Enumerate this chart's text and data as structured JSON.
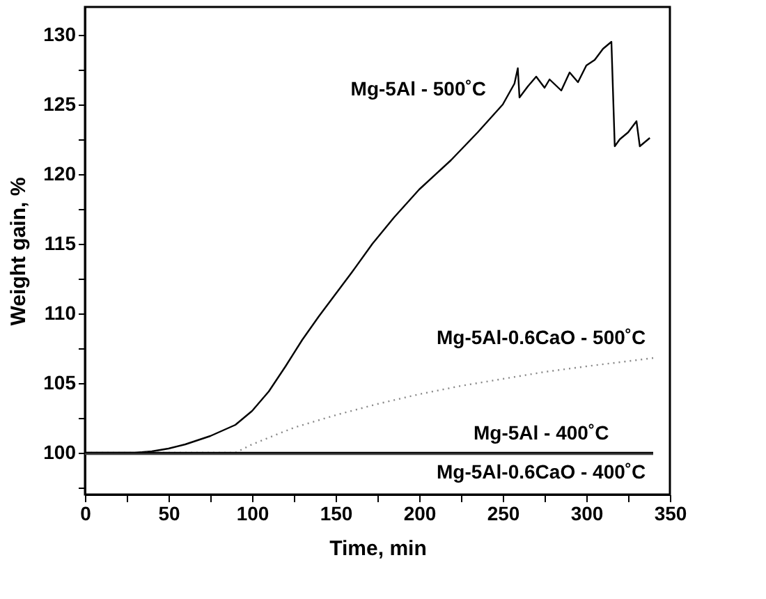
{
  "chart_data": {
    "type": "line",
    "xlabel": "Time, min",
    "ylabel": "Weight gain, %",
    "xlim": [
      0,
      350
    ],
    "ylim": [
      97,
      132
    ],
    "xticks": [
      0,
      {
        "value": 25,
        "label": null
      },
      50,
      {
        "value": 75,
        "label": null
      },
      100,
      {
        "value": 125,
        "label": null
      },
      150,
      {
        "value": 175,
        "label": null
      },
      200,
      {
        "value": 225,
        "label": null
      },
      250,
      {
        "value": 275,
        "label": null
      },
      300,
      {
        "value": 325,
        "label": null
      },
      350
    ],
    "yticks": [
      {
        "value": 97.5,
        "label": null
      },
      100,
      {
        "value": 102.5,
        "label": null
      },
      105,
      {
        "value": 107.5,
        "label": null
      },
      110,
      {
        "value": 112.5,
        "label": null
      },
      115,
      {
        "value": 117.5,
        "label": null
      },
      120,
      {
        "value": 122.5,
        "label": null
      },
      125,
      {
        "value": 127.5,
        "label": null
      },
      130
    ],
    "grid": false,
    "legend": false,
    "marker": "none",
    "series": [
      {
        "name": "Mg-5Al - 500˚C",
        "color": "#000000",
        "line_style": "solid",
        "x": [
          0,
          30,
          40,
          50,
          60,
          75,
          90,
          100,
          110,
          120,
          130,
          140,
          150,
          160,
          172,
          185,
          200,
          219,
          235,
          250,
          257,
          259,
          260,
          265,
          270,
          275,
          278,
          285,
          290,
          295,
          300,
          305,
          310,
          315,
          317,
          320,
          325,
          330,
          332,
          335,
          338
        ],
        "values": [
          100,
          100,
          100.1,
          100.3,
          100.6,
          101.2,
          102,
          103,
          104.4,
          106.2,
          108.1,
          109.8,
          111.4,
          113,
          115,
          116.9,
          118.9,
          121,
          123,
          125,
          126.5,
          127.6,
          125.5,
          126.3,
          127,
          126.2,
          126.8,
          126,
          127.3,
          126.6,
          127.8,
          128.2,
          129,
          129.5,
          122,
          122.5,
          123,
          123.8,
          122,
          122.3,
          122.6
        ]
      },
      {
        "name": "Mg-5Al-0.6CaO - 500˚C",
        "color": "#888888",
        "line_style": "dotted",
        "x": [
          0,
          90,
          100,
          125,
          150,
          175,
          200,
          225,
          250,
          275,
          300,
          320,
          340
        ],
        "values": [
          100,
          100,
          100.6,
          101.8,
          102.7,
          103.5,
          104.2,
          104.8,
          105.3,
          105.8,
          106.2,
          106.5,
          106.8
        ]
      },
      {
        "name": "Mg-5Al - 400˚C",
        "color": "#000000",
        "line_style": "solid",
        "x": [
          0,
          340
        ],
        "values": [
          100,
          100
        ]
      },
      {
        "name": "Mg-5Al-0.6CaO - 400˚C",
        "color": "#444444",
        "line_style": "solid",
        "x": [
          0,
          340
        ],
        "values": [
          99.9,
          99.9
        ]
      }
    ]
  }
}
